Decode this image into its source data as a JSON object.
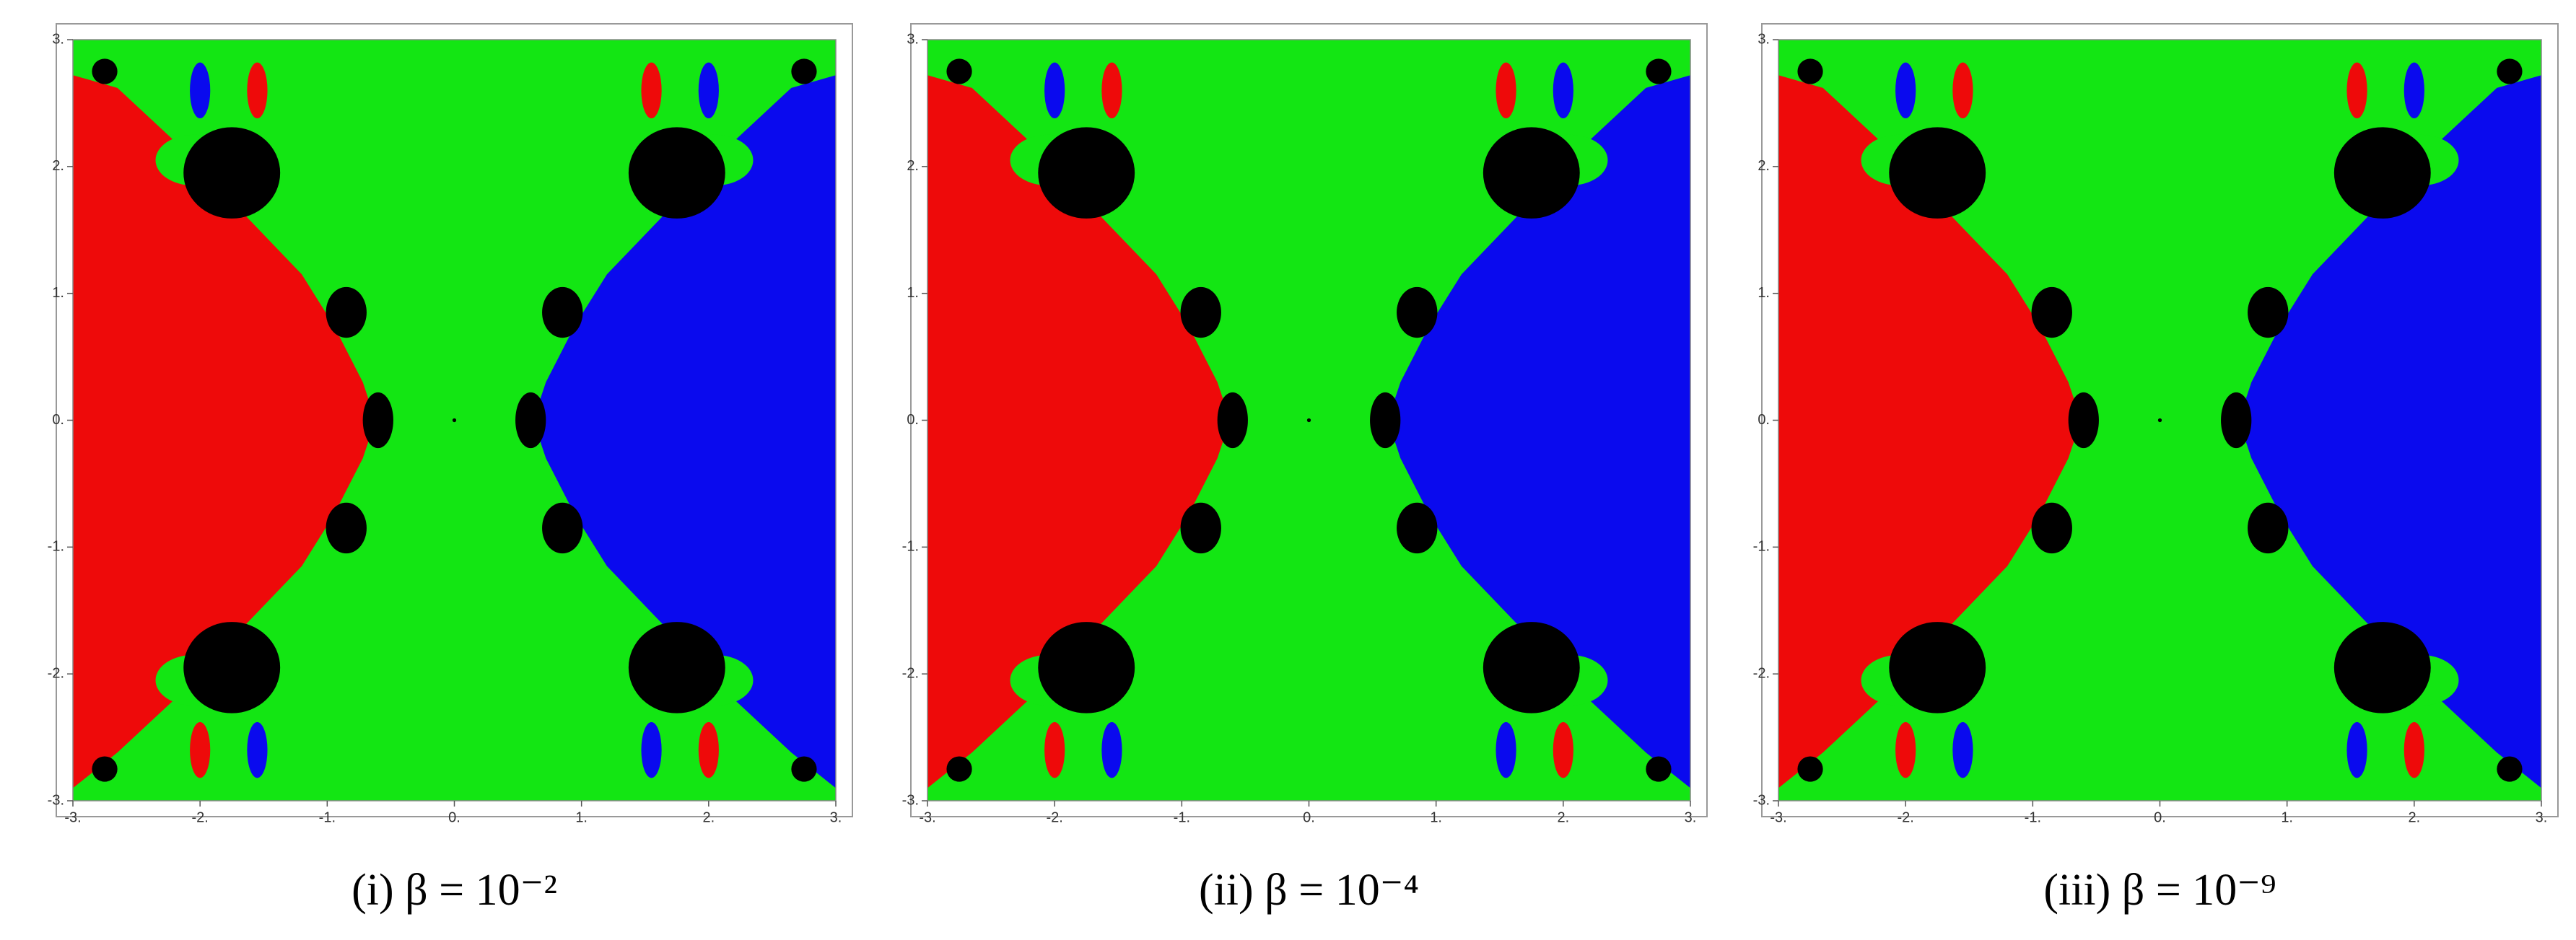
{
  "chart_data": [
    {
      "type": "basin",
      "title": "(i) β = 10⁻²",
      "xlim": [
        -3,
        3
      ],
      "ylim": [
        -3,
        3
      ],
      "xticks": [
        {
          "value": -3,
          "label": "-3."
        },
        {
          "value": -2,
          "label": "-2."
        },
        {
          "value": -1,
          "label": "-1."
        },
        {
          "value": 0,
          "label": "0."
        },
        {
          "value": 1,
          "label": "1."
        },
        {
          "value": 2,
          "label": "2."
        },
        {
          "value": 3,
          "label": "3."
        }
      ],
      "yticks": [
        {
          "value": -3,
          "label": "-3."
        },
        {
          "value": -2,
          "label": "-2."
        },
        {
          "value": -1,
          "label": "-1."
        },
        {
          "value": 0,
          "label": "0."
        },
        {
          "value": 1,
          "label": "1."
        },
        {
          "value": 2,
          "label": "2."
        },
        {
          "value": 3,
          "label": "3."
        }
      ]
    },
    {
      "type": "basin",
      "title": "(ii) β = 10⁻⁴",
      "xlim": [
        -3,
        3
      ],
      "ylim": [
        -3,
        3
      ],
      "xticks": [
        {
          "value": -3,
          "label": "-3."
        },
        {
          "value": -2,
          "label": "-2."
        },
        {
          "value": -1,
          "label": "-1."
        },
        {
          "value": 0,
          "label": "0."
        },
        {
          "value": 1,
          "label": "1."
        },
        {
          "value": 2,
          "label": "2."
        },
        {
          "value": 3,
          "label": "3."
        }
      ],
      "yticks": [
        {
          "value": -3,
          "label": "-3."
        },
        {
          "value": -2,
          "label": "-2."
        },
        {
          "value": -1,
          "label": "-1."
        },
        {
          "value": 0,
          "label": "0."
        },
        {
          "value": 1,
          "label": "1."
        },
        {
          "value": 2,
          "label": "2."
        },
        {
          "value": 3,
          "label": "3."
        }
      ]
    },
    {
      "type": "basin",
      "title": "(iii) β = 10⁻⁹",
      "xlim": [
        -3,
        3
      ],
      "ylim": [
        -3,
        3
      ],
      "xticks": [
        {
          "value": -3,
          "label": "-3."
        },
        {
          "value": -2,
          "label": "-2."
        },
        {
          "value": -1,
          "label": "-1."
        },
        {
          "value": 0,
          "label": "0."
        },
        {
          "value": 1,
          "label": "1."
        },
        {
          "value": 2,
          "label": "2."
        },
        {
          "value": 3,
          "label": "3."
        }
      ],
      "yticks": [
        {
          "value": -3,
          "label": "-3."
        },
        {
          "value": -2,
          "label": "-2."
        },
        {
          "value": -1,
          "label": "-1."
        },
        {
          "value": 0,
          "label": "0."
        },
        {
          "value": 1,
          "label": "1."
        },
        {
          "value": 2,
          "label": "2."
        },
        {
          "value": 3,
          "label": "3."
        }
      ]
    }
  ]
}
